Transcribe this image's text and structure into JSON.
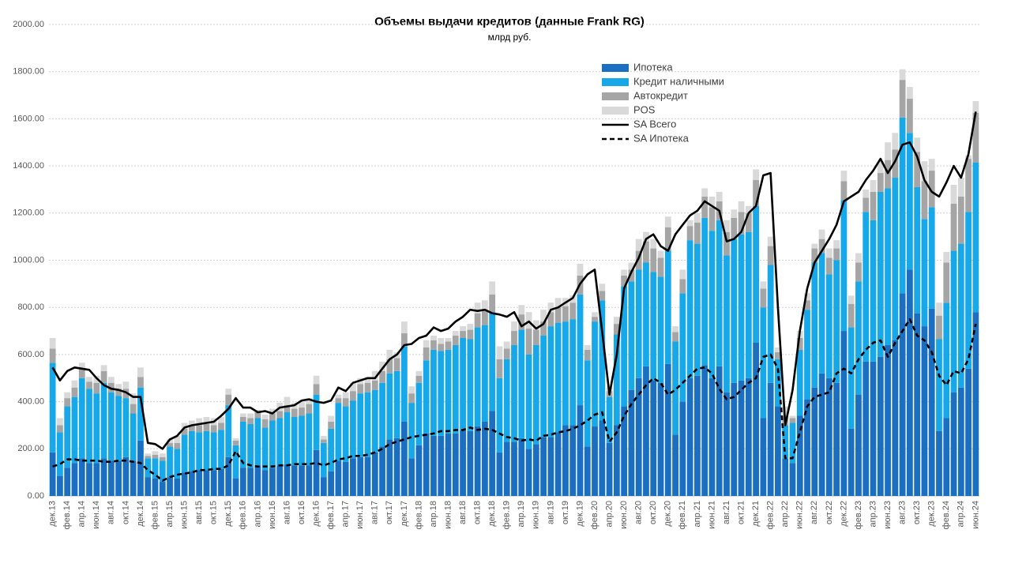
{
  "chart_data": {
    "type": "bar",
    "stacked": true,
    "title": "Объемы выдачи кредитов (данные Frank RG)",
    "subtitle": "млрд руб.",
    "categories": [
      "дек.13",
      null,
      "фев.14",
      null,
      "апр.14",
      null,
      "июн.14",
      null,
      "авг.14",
      null,
      "окт.14",
      null,
      "дек.14",
      null,
      "фев.15",
      null,
      "апр.15",
      null,
      "июн.15",
      null,
      "авг.15",
      null,
      "окт.15",
      null,
      "дек.15",
      null,
      "фев.16",
      null,
      "апр.16",
      null,
      "июн.16",
      null,
      "авг.16",
      null,
      "окт.16",
      null,
      "дек.16",
      null,
      "фев.17",
      null,
      "апр.17",
      null,
      "июн.17",
      null,
      "авг.17",
      null,
      "окт.17",
      null,
      "дек.17",
      null,
      "фев.18",
      null,
      "апр.18",
      null,
      "июн.18",
      null,
      "авг.18",
      null,
      "окт.18",
      null,
      "дек.18",
      null,
      "фев.19",
      null,
      "апр.19",
      null,
      "июн.19",
      null,
      "авг.19",
      null,
      "окт.19",
      null,
      "дек.19",
      null,
      "фев.20",
      null,
      "апр.20",
      null,
      "июн.20",
      null,
      "авг.20",
      null,
      "окт.20",
      null,
      "дек.20",
      null,
      "фев.21",
      null,
      "апр.21",
      null,
      "июн.21",
      null,
      "авг.21",
      null,
      "окт.21",
      null,
      "дек.21",
      null,
      "фев.22",
      null,
      "апр.22",
      null,
      "июн.22",
      null,
      "авг.22",
      null,
      "окт.22",
      null,
      "дек.22",
      null,
      "фев.23",
      null,
      "апр.23",
      null,
      "июн.23",
      null,
      "авг.23",
      null,
      "окт.23",
      null,
      "дек.23",
      null,
      "фев.24",
      null,
      "апр.24",
      null,
      "июн.24"
    ],
    "series": [
      {
        "name": "Ипотека",
        "color": "#1a6fc0",
        "values": [
          185,
          85,
          120,
          140,
          160,
          140,
          140,
          160,
          150,
          150,
          165,
          150,
          235,
          80,
          75,
          60,
          80,
          75,
          100,
          105,
          110,
          110,
          110,
          115,
          165,
          75,
          120,
          120,
          130,
          110,
          120,
          130,
          135,
          130,
          130,
          130,
          195,
          80,
          105,
          150,
          145,
          160,
          165,
          165,
          185,
          210,
          240,
          245,
          315,
          160,
          215,
          265,
          255,
          255,
          265,
          265,
          280,
          275,
          295,
          315,
          360,
          185,
          230,
          230,
          245,
          200,
          220,
          250,
          250,
          270,
          300,
          300,
          385,
          210,
          295,
          320,
          225,
          300,
          380,
          450,
          500,
          550,
          490,
          480,
          560,
          260,
          400,
          500,
          510,
          555,
          500,
          550,
          440,
          480,
          490,
          500,
          650,
          330,
          480,
          380,
          160,
          140,
          340,
          410,
          460,
          520,
          500,
          480,
          700,
          285,
          430,
          570,
          570,
          590,
          640,
          660,
          860,
          960,
          775,
          720,
          795,
          275,
          330,
          440,
          460,
          540,
          780
        ]
      },
      {
        "name": "Кредит наличными",
        "color": "#16a8e8",
        "values": [
          380,
          185,
          260,
          280,
          340,
          315,
          295,
          320,
          290,
          275,
          250,
          200,
          225,
          80,
          85,
          90,
          130,
          125,
          160,
          170,
          160,
          165,
          160,
          165,
          220,
          140,
          195,
          185,
          200,
          180,
          200,
          200,
          220,
          205,
          210,
          220,
          235,
          145,
          180,
          245,
          235,
          245,
          270,
          275,
          265,
          270,
          280,
          285,
          320,
          235,
          265,
          310,
          365,
          360,
          355,
          375,
          390,
          390,
          420,
          410,
          420,
          315,
          350,
          410,
          460,
          400,
          420,
          430,
          470,
          465,
          440,
          450,
          470,
          365,
          445,
          510,
          195,
          385,
          510,
          460,
          460,
          440,
          460,
          450,
          480,
          395,
          460,
          585,
          560,
          625,
          625,
          620,
          580,
          610,
          620,
          620,
          580,
          470,
          500,
          200,
          140,
          170,
          280,
          380,
          530,
          510,
          440,
          520,
          555,
          430,
          480,
          635,
          600,
          700,
          665,
          690,
          745,
          580,
          535,
          455,
          430,
          390,
          490,
          600,
          610,
          665,
          635
        ]
      },
      {
        "name": "Автокредит",
        "color": "#a5a5a5",
        "values": [
          60,
          30,
          35,
          40,
          40,
          30,
          45,
          50,
          40,
          30,
          40,
          40,
          45,
          10,
          15,
          15,
          15,
          25,
          25,
          25,
          30,
          30,
          30,
          30,
          45,
          20,
          20,
          25,
          25,
          35,
          30,
          30,
          30,
          35,
          35,
          40,
          45,
          15,
          30,
          20,
          35,
          40,
          40,
          40,
          40,
          50,
          60,
          55,
          55,
          40,
          30,
          55,
          40,
          30,
          35,
          40,
          30,
          40,
          60,
          65,
          75,
          80,
          45,
          60,
          65,
          110,
          65,
          60,
          60,
          65,
          65,
          70,
          80,
          45,
          20,
          40,
          25,
          45,
          45,
          50,
          80,
          90,
          100,
          80,
          100,
          40,
          60,
          60,
          90,
          90,
          100,
          80,
          100,
          90,
          95,
          80,
          110,
          80,
          80,
          30,
          40,
          20,
          50,
          40,
          60,
          60,
          70,
          50,
          80,
          100,
          80,
          60,
          120,
          80,
          120,
          120,
          160,
          145,
          150,
          160,
          155,
          100,
          170,
          200,
          200,
          225,
          210
        ]
      },
      {
        "name": "POS",
        "color": "#d9d9d9",
        "values": [
          45,
          30,
          25,
          30,
          25,
          20,
          30,
          25,
          25,
          20,
          30,
          45,
          40,
          10,
          15,
          15,
          15,
          30,
          25,
          20,
          30,
          30,
          30,
          25,
          25,
          10,
          15,
          20,
          10,
          20,
          20,
          35,
          35,
          25,
          25,
          25,
          35,
          15,
          25,
          15,
          25,
          35,
          25,
          25,
          40,
          40,
          40,
          25,
          50,
          30,
          20,
          30,
          20,
          25,
          15,
          20,
          20,
          25,
          45,
          40,
          55,
          55,
          30,
          40,
          40,
          70,
          40,
          50,
          40,
          40,
          35,
          30,
          50,
          20,
          20,
          30,
          15,
          30,
          25,
          30,
          50,
          40,
          40,
          30,
          45,
          25,
          40,
          25,
          40,
          35,
          45,
          40,
          50,
          35,
          45,
          30,
          45,
          30,
          40,
          20,
          40,
          10,
          30,
          30,
          20,
          40,
          40,
          35,
          45,
          35,
          40,
          35,
          50,
          50,
          75,
          70,
          45,
          50,
          60,
          85,
          50,
          55,
          45,
          80,
          80,
          15,
          50
        ]
      }
    ],
    "line_series": [
      {
        "name": "SA Всего",
        "color": "#000000",
        "dashed": false,
        "values": [
          545,
          490,
          530,
          545,
          540,
          535,
          500,
          470,
          455,
          450,
          440,
          420,
          420,
          225,
          220,
          200,
          240,
          255,
          290,
          300,
          305,
          310,
          315,
          340,
          370,
          415,
          375,
          375,
          355,
          360,
          350,
          375,
          380,
          385,
          405,
          410,
          400,
          395,
          405,
          460,
          445,
          480,
          490,
          500,
          500,
          540,
          580,
          600,
          640,
          645,
          670,
          680,
          715,
          700,
          710,
          740,
          760,
          790,
          785,
          790,
          775,
          770,
          760,
          780,
          720,
          740,
          710,
          730,
          790,
          800,
          820,
          840,
          900,
          940,
          960,
          700,
          430,
          600,
          880,
          950,
          1010,
          1090,
          1110,
          1060,
          1040,
          1110,
          1150,
          1190,
          1210,
          1250,
          1230,
          1210,
          1080,
          1090,
          1120,
          1200,
          1230,
          1360,
          1370,
          800,
          300,
          450,
          700,
          880,
          990,
          1040,
          1090,
          1150,
          1250,
          1270,
          1290,
          1340,
          1380,
          1430,
          1370,
          1420,
          1490,
          1500,
          1440,
          1340,
          1290,
          1270,
          1330,
          1400,
          1350,
          1450,
          1630
        ]
      },
      {
        "name": "SA Ипотека",
        "color": "#000000",
        "dashed": true,
        "values": [
          125,
          135,
          155,
          155,
          150,
          150,
          150,
          145,
          145,
          150,
          150,
          145,
          140,
          110,
          90,
          65,
          80,
          90,
          95,
          100,
          110,
          110,
          115,
          115,
          130,
          190,
          140,
          130,
          125,
          125,
          125,
          130,
          130,
          135,
          135,
          135,
          140,
          130,
          140,
          155,
          160,
          170,
          170,
          175,
          185,
          200,
          220,
          230,
          240,
          250,
          255,
          260,
          265,
          275,
          275,
          280,
          280,
          290,
          280,
          285,
          280,
          265,
          250,
          245,
          235,
          240,
          235,
          255,
          260,
          270,
          275,
          285,
          300,
          320,
          345,
          355,
          230,
          270,
          340,
          390,
          430,
          470,
          500,
          480,
          430,
          450,
          480,
          510,
          540,
          545,
          520,
          455,
          410,
          420,
          450,
          480,
          500,
          590,
          600,
          540,
          160,
          160,
          270,
          380,
          420,
          430,
          440,
          520,
          540,
          520,
          580,
          620,
          650,
          660,
          590,
          650,
          700,
          750,
          680,
          660,
          610,
          510,
          470,
          530,
          520,
          580,
          730
        ]
      }
    ],
    "ylim": [
      0,
      2000
    ],
    "yticks": [
      {
        "value": 0,
        "label": "0.00"
      },
      {
        "value": 200,
        "label": "200.00"
      },
      {
        "value": 400,
        "label": "400.00"
      },
      {
        "value": 600,
        "label": "600.00"
      },
      {
        "value": 800,
        "label": "800.00"
      },
      {
        "value": 1000,
        "label": "1000.00"
      },
      {
        "value": 1200,
        "label": "1200.00"
      },
      {
        "value": 1400,
        "label": "1400.00"
      },
      {
        "value": 1600,
        "label": "1600.00"
      },
      {
        "value": 1800,
        "label": "1800.00"
      },
      {
        "value": 2000,
        "label": "2000.00"
      }
    ],
    "grid": true,
    "legend": "top"
  }
}
